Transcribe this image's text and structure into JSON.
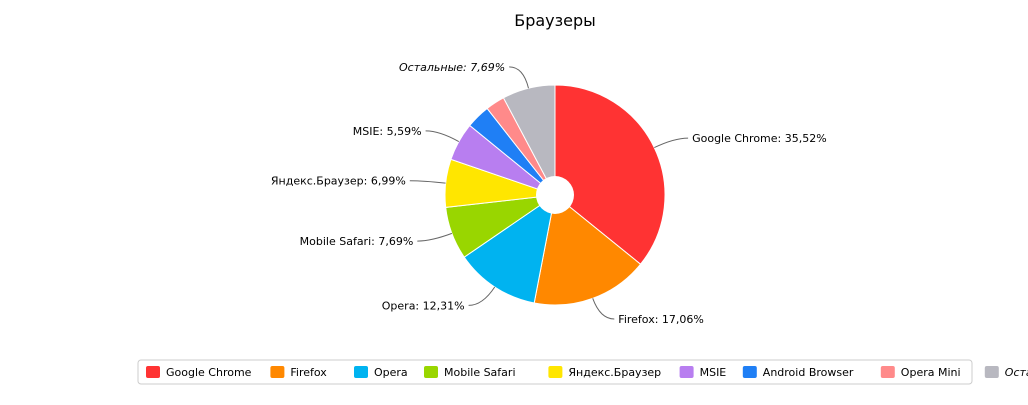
{
  "chart_data": {
    "type": "pie",
    "title": "Браузеры",
    "hole": true,
    "legend_position": "bottom",
    "slices": [
      {
        "name": "Google Chrome",
        "value": 35.52,
        "label": "Google Chrome: 35,52%",
        "color": "#ff3333",
        "italic": false
      },
      {
        "name": "Firefox",
        "value": 17.06,
        "label": "Firefox: 17,06%",
        "color": "#ff8800",
        "italic": false
      },
      {
        "name": "Opera",
        "value": 12.31,
        "label": "Opera: 12,31%",
        "color": "#00b3f0",
        "italic": false
      },
      {
        "name": "Mobile Safari",
        "value": 7.69,
        "label": "Mobile Safari: 7,69%",
        "color": "#99d600",
        "italic": false
      },
      {
        "name": "Яндекс.Браузер",
        "value": 6.99,
        "label": "Яндекс.Браузер: 6,99%",
        "color": "#ffe600",
        "italic": false
      },
      {
        "name": "MSIE",
        "value": 5.59,
        "label": "MSIE: 5,59%",
        "color": "#b87ef0",
        "italic": false
      },
      {
        "name": "Android Browser",
        "value": 3.5,
        "label": "",
        "color": "#1f7ff5",
        "italic": false
      },
      {
        "name": "Opera Mini",
        "value": 2.8,
        "label": "",
        "color": "#ff8a8a",
        "italic": false
      },
      {
        "name": "Остальные",
        "value": 7.69,
        "label": "Остальные: 7,69%",
        "color": "#b8b8c0",
        "italic": true
      }
    ]
  }
}
